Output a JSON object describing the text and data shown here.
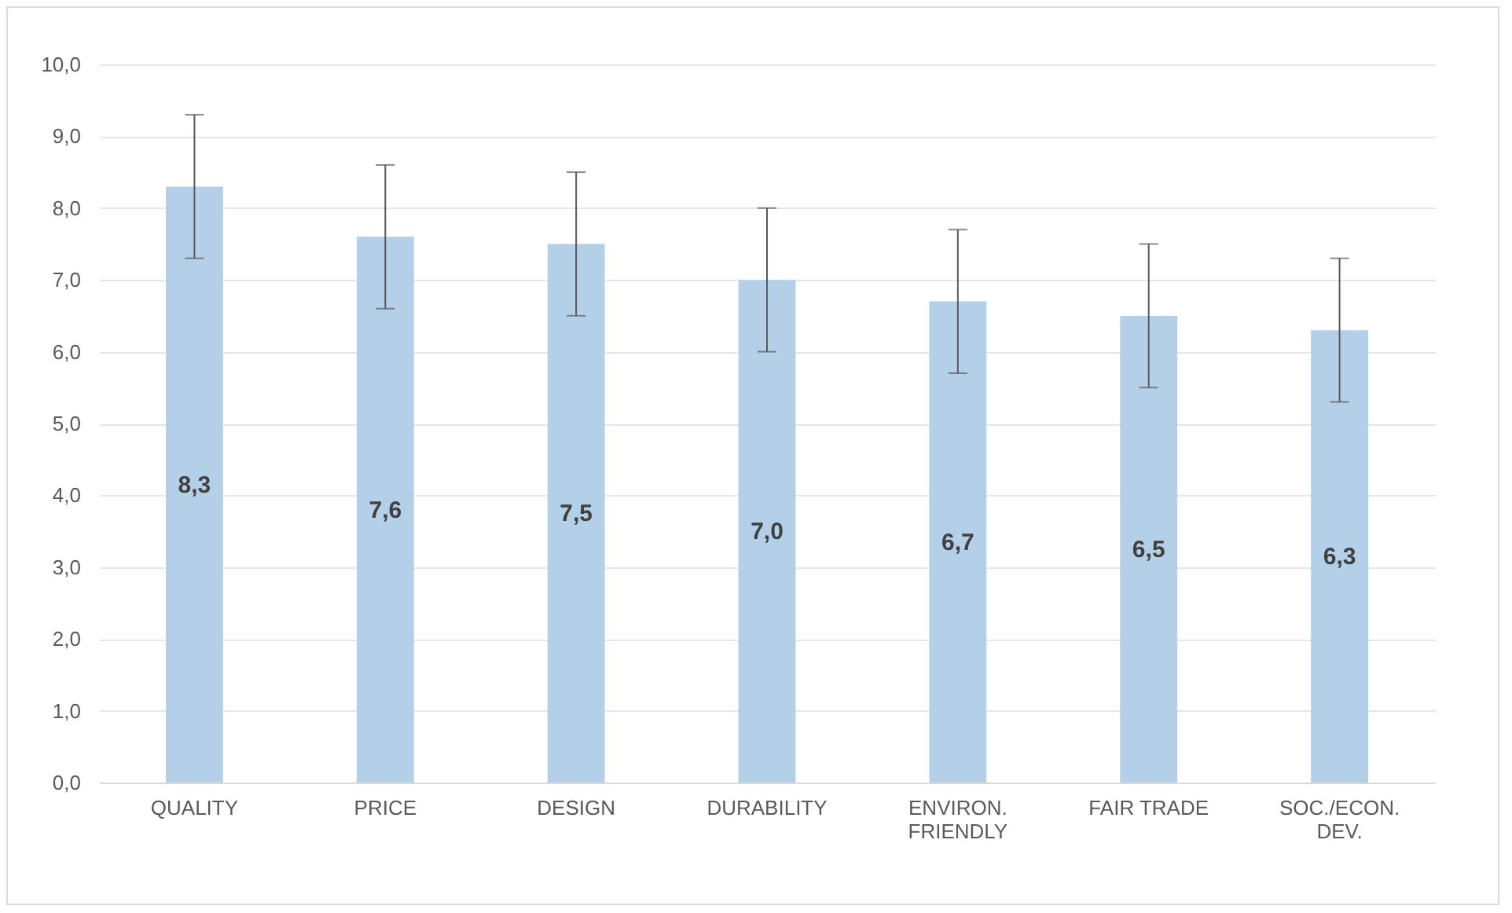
{
  "chart_data": {
    "type": "bar",
    "categories": [
      "QUALITY",
      "PRICE",
      "DESIGN",
      "DURABILITY",
      "ENVIRON.\nFRIENDLY",
      "FAIR TRADE",
      "SOC./ECON.\nDEV."
    ],
    "values": [
      8.3,
      7.6,
      7.5,
      7.0,
      6.7,
      6.5,
      6.3
    ],
    "errors": [
      1.0,
      1.0,
      1.0,
      1.0,
      1.0,
      1.0,
      1.0
    ],
    "value_labels": [
      "8,3",
      "7,6",
      "7,5",
      "7,0",
      "6,7",
      "6,5",
      "6,3"
    ],
    "color": "#b4d0e9",
    "ylim": [
      0,
      10
    ],
    "yticks": [
      {
        "value": 0,
        "label": "0,0"
      },
      {
        "value": 1,
        "label": "1,0"
      },
      {
        "value": 2,
        "label": "2,0"
      },
      {
        "value": 3,
        "label": "3,0"
      },
      {
        "value": 4,
        "label": "4,0"
      },
      {
        "value": 5,
        "label": "5,0"
      },
      {
        "value": 6,
        "label": "6,0"
      },
      {
        "value": 7,
        "label": "7,0"
      },
      {
        "value": 8,
        "label": "8,0"
      },
      {
        "value": 9,
        "label": "9,0"
      },
      {
        "value": 10,
        "label": "10,0"
      }
    ],
    "grid": "y"
  }
}
